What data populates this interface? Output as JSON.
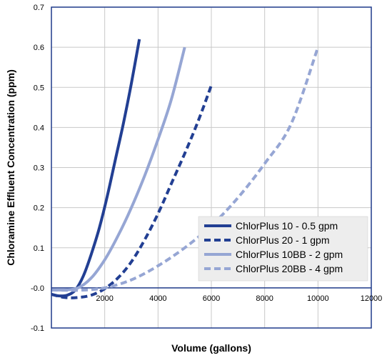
{
  "chart_data": {
    "type": "line",
    "title": "",
    "xlabel": "Volume (gallons)",
    "ylabel": "Chloramine Effluent Concentration (ppm)",
    "xlim": [
      0,
      12000
    ],
    "ylim": [
      -0.1,
      0.7
    ],
    "x_ticks": [
      {
        "value": 2000,
        "label": "2000"
      },
      {
        "value": 4000,
        "label": "4000"
      },
      {
        "value": 6000,
        "label": "6000"
      },
      {
        "value": 8000,
        "label": "8000"
      },
      {
        "value": 10000,
        "label": "10000"
      },
      {
        "value": 12000,
        "label": "12000"
      }
    ],
    "y_ticks": [
      {
        "value": 0.7,
        "label": "0.7"
      },
      {
        "value": 0.6,
        "label": "0.6"
      },
      {
        "value": 0.5,
        "label": "0.5"
      },
      {
        "value": 0.4,
        "label": "0.4"
      },
      {
        "value": 0.3,
        "label": "0.3"
      },
      {
        "value": 0.2,
        "label": "0.2"
      },
      {
        "value": 0.1,
        "label": "0.1"
      },
      {
        "value": 0.0,
        "label": "-0.0"
      },
      {
        "value": -0.1,
        "label": "-0.1"
      }
    ],
    "grid": true,
    "legend_position": "bottom-right",
    "series": [
      {
        "name": "ChlorPlus 10 - 0.5 gpm",
        "color": "#223f93",
        "dash": "solid",
        "points": [
          [
            0,
            -0.016
          ],
          [
            300,
            -0.02
          ],
          [
            600,
            -0.018
          ],
          [
            900,
            -0.005
          ],
          [
            1200,
            0.03
          ],
          [
            1500,
            0.085
          ],
          [
            1800,
            0.15
          ],
          [
            2100,
            0.23
          ],
          [
            2400,
            0.32
          ],
          [
            2700,
            0.41
          ],
          [
            3000,
            0.51
          ],
          [
            3300,
            0.62
          ]
        ]
      },
      {
        "name": "ChlorPlus 20 - 1 gpm",
        "color": "#223f93",
        "dash": "dashed",
        "points": [
          [
            0,
            -0.016
          ],
          [
            500,
            -0.024
          ],
          [
            1000,
            -0.024
          ],
          [
            1500,
            -0.018
          ],
          [
            2000,
            -0.002
          ],
          [
            2500,
            0.025
          ],
          [
            3000,
            0.065
          ],
          [
            3500,
            0.12
          ],
          [
            4000,
            0.185
          ],
          [
            4500,
            0.26
          ],
          [
            5000,
            0.335
          ],
          [
            5500,
            0.415
          ],
          [
            6000,
            0.505
          ]
        ]
      },
      {
        "name": "ChlorPlus 10BB - 2 gpm",
        "color": "#96a6d4",
        "dash": "solid",
        "points": [
          [
            0,
            -0.005
          ],
          [
            500,
            -0.005
          ],
          [
            1000,
            0.0
          ],
          [
            1500,
            0.025
          ],
          [
            2000,
            0.07
          ],
          [
            2500,
            0.13
          ],
          [
            3000,
            0.2
          ],
          [
            3500,
            0.28
          ],
          [
            4000,
            0.37
          ],
          [
            4500,
            0.47
          ],
          [
            5000,
            0.6
          ]
        ]
      },
      {
        "name": "ChlorPlus 20BB - 4 gpm",
        "color": "#96a6d4",
        "dash": "dashed",
        "points": [
          [
            0,
            -0.005
          ],
          [
            1000,
            -0.006
          ],
          [
            2000,
            0.0
          ],
          [
            3000,
            0.02
          ],
          [
            4000,
            0.055
          ],
          [
            5000,
            0.1
          ],
          [
            6000,
            0.155
          ],
          [
            7000,
            0.225
          ],
          [
            8000,
            0.31
          ],
          [
            9000,
            0.41
          ],
          [
            10000,
            0.6
          ]
        ]
      }
    ]
  }
}
